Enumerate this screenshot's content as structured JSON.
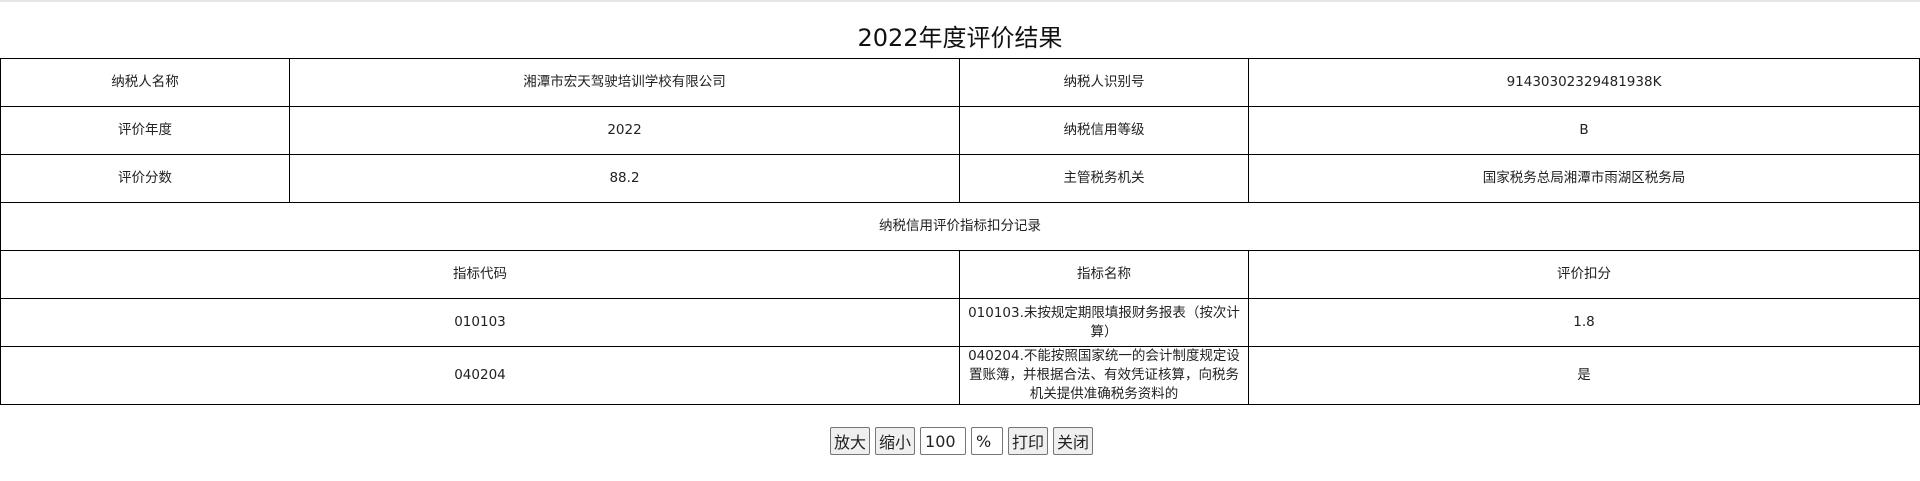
{
  "title": "2022年度评价结果",
  "info_rows": [
    {
      "label1": "纳税人名称",
      "value1": "湘潭市宏天驾驶培训学校有限公司",
      "label2": "纳税人识别号",
      "value2": "91430302329481938K"
    },
    {
      "label1": "评价年度",
      "value1": "2022",
      "label2": "纳税信用等级",
      "value2": "B"
    },
    {
      "label1": "评价分数",
      "value1": "88.2",
      "label2": "主管税务机关",
      "value2": "国家税务总局湘潭市雨湖区税务局"
    }
  ],
  "section_title": "纳税信用评价指标扣分记录",
  "columns": [
    "指标代码",
    "指标名称",
    "评价扣分"
  ],
  "records": [
    {
      "code": "010103",
      "name": "010103.未按规定期限填报财务报表（按次计算）",
      "deduction": "1.8"
    },
    {
      "code": "040204",
      "name": "040204.不能按照国家统一的会计制度规定设置账簿，并根据合法、有效凭证核算，向税务机关提供准确税务资料的",
      "deduction": "是"
    }
  ],
  "controls": {
    "zoom_in": "放大",
    "zoom_out": "缩小",
    "zoom_value": "100",
    "percent": "%",
    "print": "打印",
    "close": "关闭"
  }
}
